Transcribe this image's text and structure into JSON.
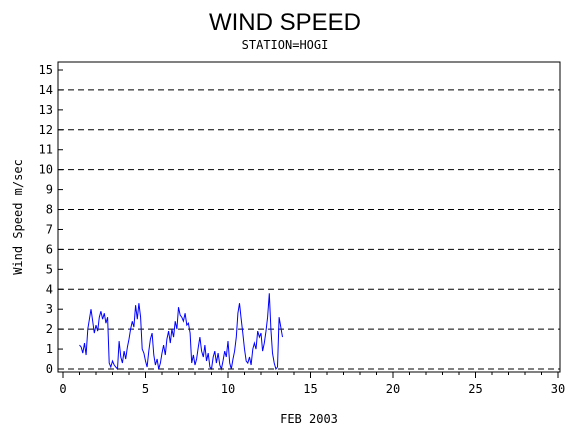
{
  "chart_data": {
    "type": "line",
    "title": "WIND SPEED",
    "subtitle": "STATION=HOGI",
    "xlabel": "FEB 2003",
    "ylabel": "Wind Speed m/sec",
    "xlim": [
      0,
      30
    ],
    "ylim": [
      0,
      15.5
    ],
    "x_ticks": [
      0,
      5,
      10,
      15,
      20,
      25,
      30
    ],
    "y_ticks": [
      0,
      1,
      2,
      3,
      4,
      5,
      6,
      7,
      8,
      9,
      10,
      11,
      12,
      13,
      14,
      15
    ],
    "dashed_gridlines_y": [
      0,
      2,
      4,
      6,
      8,
      10,
      12,
      14
    ],
    "series": [
      {
        "color": "#0000ff",
        "x": [
          1.0,
          1.1,
          1.2,
          1.3,
          1.4,
          1.5,
          1.6,
          1.7,
          1.8,
          1.9,
          2.0,
          2.1,
          2.2,
          2.3,
          2.4,
          2.5,
          2.6,
          2.7,
          2.8,
          2.9,
          3.0,
          3.1,
          3.2,
          3.3,
          3.4,
          3.5,
          3.6,
          3.7,
          3.8,
          3.9,
          4.0,
          4.1,
          4.2,
          4.3,
          4.4,
          4.5,
          4.6,
          4.7,
          4.8,
          4.9,
          5.0,
          5.1,
          5.2,
          5.3,
          5.4,
          5.5,
          5.6,
          5.7,
          5.8,
          5.9,
          6.0,
          6.1,
          6.2,
          6.3,
          6.4,
          6.5,
          6.6,
          6.7,
          6.8,
          6.9,
          7.0,
          7.1,
          7.2,
          7.3,
          7.4,
          7.5,
          7.6,
          7.7,
          7.8,
          7.9,
          8.0,
          8.1,
          8.2,
          8.3,
          8.4,
          8.5,
          8.6,
          8.7,
          8.8,
          8.9,
          9.0,
          9.1,
          9.2,
          9.3,
          9.4,
          9.5,
          9.6,
          9.7,
          9.8,
          9.9,
          10.0,
          10.1,
          10.2,
          10.3,
          10.4,
          10.5,
          10.6,
          10.7,
          10.8,
          10.9,
          11.0,
          11.1,
          11.2,
          11.3,
          11.4,
          11.5,
          11.6,
          11.7,
          11.8,
          11.9,
          12.0,
          12.1,
          12.2,
          12.3,
          12.4,
          12.5,
          12.6,
          12.7,
          12.8,
          12.9,
          13.0,
          13.1,
          13.2,
          13.3
        ],
        "y": [
          1.2,
          1.1,
          0.8,
          1.3,
          0.7,
          2.0,
          2.5,
          3.0,
          2.4,
          1.8,
          2.2,
          1.9,
          2.6,
          2.9,
          2.5,
          2.8,
          2.3,
          2.6,
          0.3,
          0.1,
          0.4,
          0.2,
          0.1,
          0.0,
          1.4,
          0.6,
          0.3,
          0.9,
          0.5,
          1.1,
          1.5,
          2.0,
          2.4,
          2.1,
          3.2,
          2.5,
          3.3,
          2.6,
          1.0,
          0.8,
          0.4,
          0.1,
          0.9,
          1.5,
          1.8,
          0.7,
          0.2,
          0.5,
          0.0,
          0.3,
          0.8,
          1.2,
          0.7,
          1.5,
          1.9,
          1.3,
          2.0,
          1.6,
          2.4,
          2.0,
          3.1,
          2.7,
          2.6,
          2.4,
          2.8,
          2.2,
          2.3,
          1.8,
          0.3,
          0.7,
          0.2,
          0.5,
          1.1,
          1.6,
          0.9,
          0.6,
          1.2,
          0.4,
          0.8,
          0.1,
          0.0,
          0.6,
          0.9,
          0.3,
          0.8,
          0.2,
          0.0,
          0.4,
          0.9,
          0.6,
          1.4,
          0.3,
          0.0,
          0.5,
          0.9,
          1.6,
          2.8,
          3.3,
          2.5,
          1.8,
          1.0,
          0.4,
          0.3,
          0.6,
          0.2,
          1.0,
          1.3,
          1.0,
          1.9,
          1.6,
          1.8,
          0.9,
          1.3,
          1.9,
          2.6,
          3.8,
          2.0,
          0.8,
          0.3,
          0.0,
          0.1,
          2.6,
          2.1,
          1.6
        ]
      }
    ]
  }
}
